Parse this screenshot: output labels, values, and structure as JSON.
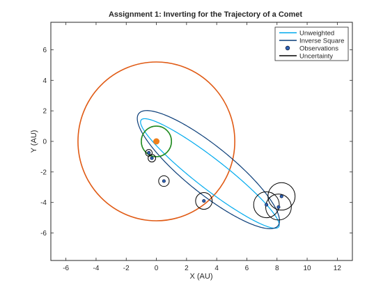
{
  "chart_data": {
    "type": "scatter",
    "title": "Assignment 1: Inverting for the Trajectory of a Comet",
    "xlabel": "X (AU)",
    "ylabel": "Y (AU)",
    "xlim": [
      -7,
      13
    ],
    "ylim": [
      -7.8,
      7.8
    ],
    "xticks": [
      -6,
      -4,
      -2,
      0,
      2,
      4,
      6,
      8,
      10,
      12
    ],
    "yticks": [
      -6,
      -4,
      -2,
      0,
      2,
      4,
      6
    ],
    "grid": false,
    "legend_position": "top-right",
    "legend": [
      "Unweighted",
      "Inverse Square",
      "Observations",
      "Uncertainty"
    ],
    "colors": {
      "unweighted": "#00aaee",
      "inverse_square": "#0a3d78",
      "observations_fill": "#2f62b4",
      "observations_edge": "#0a1a40",
      "uncertainty": "#000000",
      "big_orbit": "#e05a14",
      "sun": "#f07f1a",
      "small_orbit": "#1f8a1f"
    },
    "series": [
      {
        "name": "Unweighted",
        "kind": "ellipse",
        "center": [
          3.55,
          -2.1
        ],
        "semi_major": 5.75,
        "semi_minor": 0.98,
        "rotation_deg": -37.5
      },
      {
        "name": "Inverse Square",
        "kind": "ellipse",
        "center": [
          3.45,
          -1.85
        ],
        "semi_major": 5.9,
        "semi_minor": 1.55,
        "rotation_deg": -38.5
      },
      {
        "name": "Observations",
        "kind": "points",
        "points": [
          [
            -0.5,
            -0.75
          ],
          [
            -0.3,
            -1.1
          ],
          [
            0.5,
            -2.6
          ],
          [
            3.15,
            -3.9
          ],
          [
            7.3,
            -4.15
          ],
          [
            8.1,
            -4.3
          ],
          [
            8.3,
            -3.6
          ]
        ]
      },
      {
        "name": "Uncertainty",
        "kind": "circles",
        "circles": [
          {
            "center": [
              -0.5,
              -0.75
            ],
            "radius": 0.22
          },
          {
            "center": [
              -0.3,
              -1.1
            ],
            "radius": 0.25
          },
          {
            "center": [
              0.5,
              -2.6
            ],
            "radius": 0.35
          },
          {
            "center": [
              3.15,
              -3.9
            ],
            "radius": 0.55
          },
          {
            "center": [
              7.3,
              -4.15
            ],
            "radius": 0.85
          },
          {
            "center": [
              8.1,
              -4.3
            ],
            "radius": 0.85
          },
          {
            "center": [
              8.3,
              -3.6
            ],
            "radius": 0.9
          }
        ]
      }
    ],
    "extra_circles": [
      {
        "name": "large-orbit",
        "center": [
          0,
          0
        ],
        "radius": 5.2
      },
      {
        "name": "small-orbit",
        "center": [
          0,
          0
        ],
        "radius": 1.0
      }
    ],
    "sun": {
      "center": [
        0,
        0
      ]
    }
  }
}
